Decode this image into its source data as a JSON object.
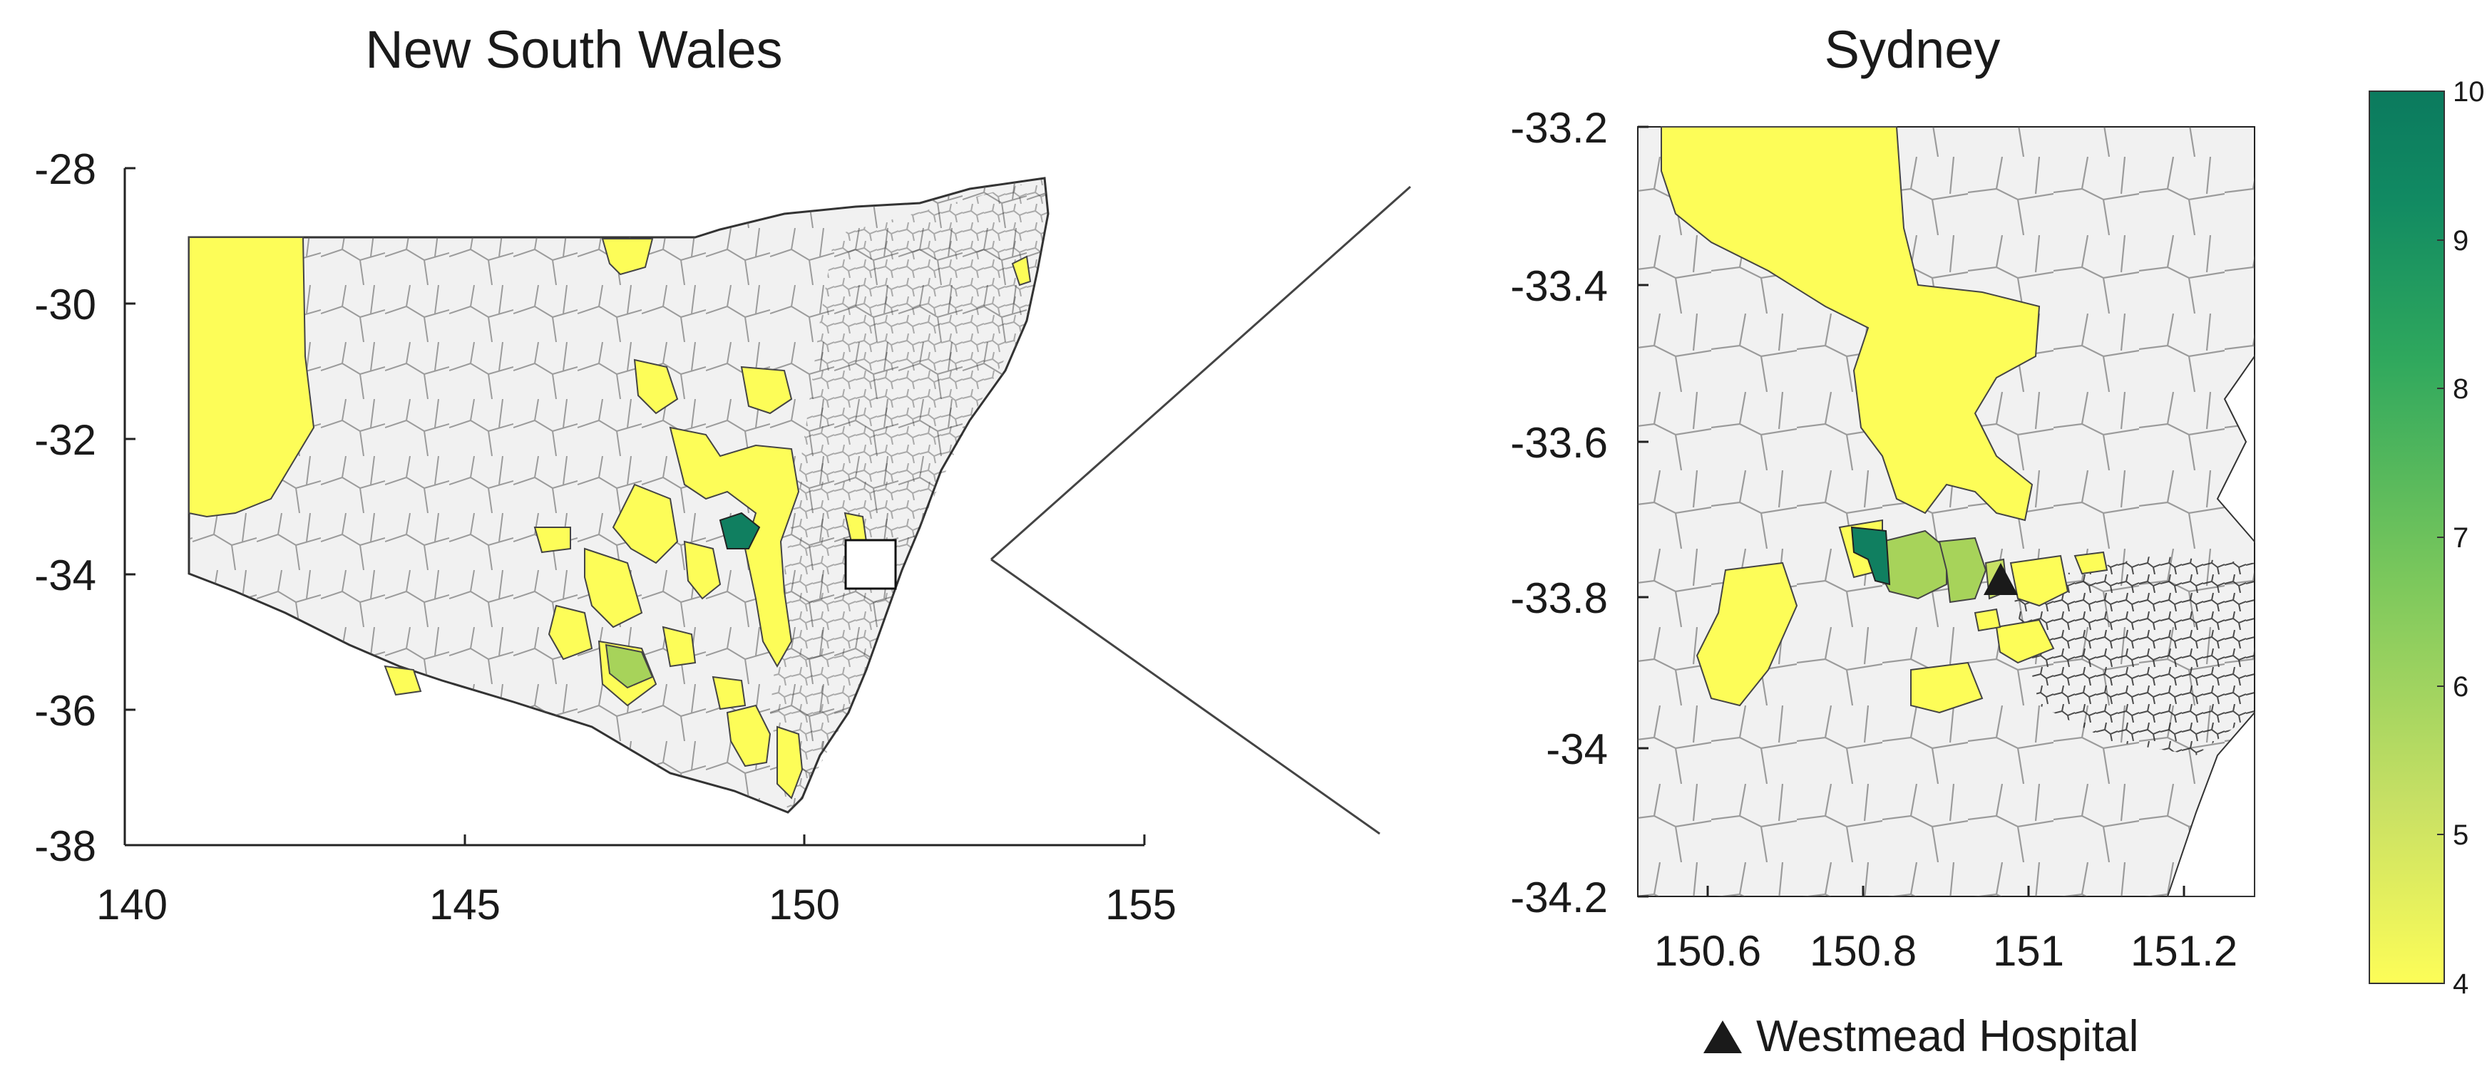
{
  "left_map": {
    "title": "New South Wales",
    "x_ticks": [
      "140",
      "145",
      "150",
      "155"
    ],
    "y_ticks": [
      "-28",
      "-30",
      "-32",
      "-34",
      "-36",
      "-38"
    ]
  },
  "right_map": {
    "title": "Sydney",
    "x_ticks": [
      "150.6",
      "150.8",
      "151",
      "151.2"
    ],
    "y_ticks": [
      "-33.2",
      "-33.4",
      "-33.6",
      "-33.8",
      "-34",
      "-34.2"
    ]
  },
  "colorbar": {
    "ticks": [
      "10",
      "9",
      "8",
      "7",
      "6",
      "5",
      "4"
    ],
    "min": 4,
    "max": 10,
    "colors": [
      "#fdfd58",
      "#c8e064",
      "#7cc85c",
      "#2fa85d",
      "#118a62",
      "#0b7a5e"
    ]
  },
  "legend": {
    "marker_icon": "black-triangle-icon",
    "label": "Westmead Hospital"
  },
  "colors": {
    "background_region": "#f1f1f1",
    "low": "#fdfd58",
    "mid": "#a7d35a",
    "high": "#107f60",
    "border": "#333333"
  }
}
